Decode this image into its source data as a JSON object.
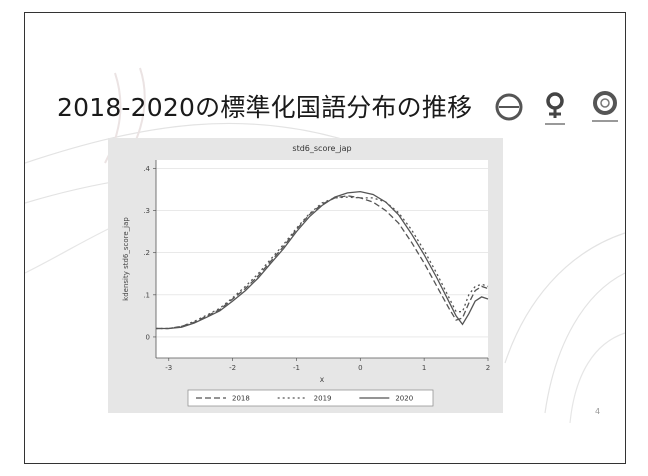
{
  "slide": {
    "title": "2018-2020の標準化国語分布の推移",
    "page_number": "4"
  },
  "colors": {
    "background": "#e6e6e6",
    "plot_bg": "#ffffff",
    "line": "#555555",
    "accent": "#c0392b"
  },
  "chart_data": {
    "type": "line",
    "title": "std6_score_jap",
    "xlabel": "x",
    "ylabel": "kdensity std6_score_jap",
    "xlim": [
      -3.2,
      2.0
    ],
    "ylim": [
      -0.05,
      0.42
    ],
    "x_ticks": [
      -3,
      -2,
      -1,
      0,
      1,
      2
    ],
    "y_ticks": [
      0,
      0.1,
      0.2,
      0.3,
      0.4
    ],
    "y_tick_labels": [
      "0",
      ".1",
      ".2",
      ".3",
      ".4"
    ],
    "legend_position": "bottom",
    "x": [
      -3.2,
      -3.0,
      -2.8,
      -2.6,
      -2.4,
      -2.2,
      -2.0,
      -1.8,
      -1.6,
      -1.4,
      -1.2,
      -1.0,
      -0.8,
      -0.6,
      -0.4,
      -0.2,
      0.0,
      0.2,
      0.4,
      0.6,
      0.8,
      1.0,
      1.2,
      1.4,
      1.5,
      1.6,
      1.7,
      1.8,
      1.9,
      2.0
    ],
    "series": [
      {
        "name": "2018",
        "dash": "6,3",
        "values": [
          0.02,
          0.02,
          0.025,
          0.035,
          0.05,
          0.065,
          0.09,
          0.115,
          0.145,
          0.18,
          0.215,
          0.255,
          0.29,
          0.315,
          0.33,
          0.335,
          0.33,
          0.32,
          0.3,
          0.27,
          0.225,
          0.175,
          0.12,
          0.065,
          0.04,
          0.045,
          0.08,
          0.11,
          0.12,
          0.115
        ]
      },
      {
        "name": "2019",
        "dash": "2,3",
        "values": [
          0.02,
          0.02,
          0.025,
          0.037,
          0.052,
          0.068,
          0.093,
          0.12,
          0.15,
          0.185,
          0.22,
          0.258,
          0.292,
          0.318,
          0.33,
          0.332,
          0.33,
          0.33,
          0.32,
          0.295,
          0.255,
          0.205,
          0.15,
          0.09,
          0.06,
          0.06,
          0.1,
          0.12,
          0.125,
          0.12
        ]
      },
      {
        "name": "2020",
        "dash": "",
        "values": [
          0.02,
          0.02,
          0.023,
          0.033,
          0.047,
          0.062,
          0.085,
          0.11,
          0.14,
          0.175,
          0.21,
          0.25,
          0.285,
          0.312,
          0.332,
          0.342,
          0.345,
          0.338,
          0.32,
          0.29,
          0.245,
          0.195,
          0.14,
          0.08,
          0.05,
          0.03,
          0.055,
          0.085,
          0.095,
          0.09
        ]
      }
    ]
  }
}
